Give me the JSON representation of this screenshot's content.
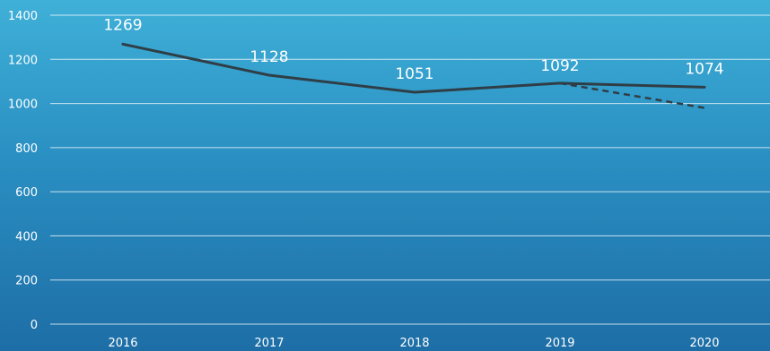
{
  "chart_data": {
    "type": "line",
    "title": "",
    "xlabel": "",
    "ylabel": "",
    "categories": [
      "2016",
      "2017",
      "2018",
      "2019",
      "2020"
    ],
    "series": [
      {
        "values": [
          1269,
          1128,
          1051,
          1092,
          1074
        ],
        "style": "solid",
        "data_labels": [
          "1269",
          "1128",
          "1051",
          "1092",
          "1074"
        ]
      },
      {
        "values": [
          null,
          null,
          null,
          1092,
          980
        ],
        "style": "dashed"
      }
    ],
    "ylim": [
      0,
      1400
    ],
    "yticks": [
      0,
      200,
      400,
      600,
      800,
      1000,
      1200,
      1400
    ],
    "yticks_labels": [
      "0",
      "200",
      "400",
      "600",
      "800",
      "1000",
      "1200",
      "1400"
    ],
    "grid": true,
    "legend": "none",
    "colors": {
      "line": "#2f3e46",
      "grid": "#ffffff",
      "text": "#ffffff",
      "background_top": "#3fb0d8",
      "background_bottom": "#1d6ea6"
    }
  }
}
